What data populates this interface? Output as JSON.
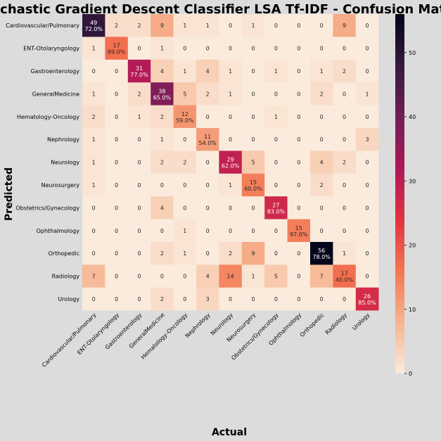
{
  "chart_data": {
    "type": "heatmap",
    "title": "Stochastic Gradient Descent Classifier LSA Tf-IDF - Confusion Matrix",
    "xlabel": "Actual",
    "ylabel": "Predicted",
    "x_categories": [
      "Cardiovascular/Pulmonary",
      "ENT-Otolaryngology",
      "Gastroenterology",
      "GeneralMedicine",
      "Hematology-Oncology",
      "Nephrology",
      "Neurology",
      "Neurosurgery",
      "Obstetrics/Gynecology",
      "Ophthalmology",
      "Orthopedic",
      "Radiology",
      "Urology"
    ],
    "y_categories": [
      "Cardiovascular/Pulmonary",
      "ENT-Otolaryngology",
      "Gastroenterology",
      "GeneralMedicine",
      "Hematology-Oncology",
      "Nephrology",
      "Neurology",
      "Neurosurgery",
      "Obstetrics/Gynecology",
      "Ophthalmology",
      "Orthopedic",
      "Radiology",
      "Urology"
    ],
    "values": [
      [
        49,
        2,
        2,
        9,
        1,
        1,
        0,
        1,
        0,
        0,
        0,
        9,
        0
      ],
      [
        1,
        17,
        0,
        1,
        0,
        0,
        0,
        0,
        0,
        0,
        0,
        0,
        0
      ],
      [
        0,
        0,
        31,
        4,
        1,
        4,
        1,
        0,
        1,
        0,
        1,
        2,
        0
      ],
      [
        1,
        0,
        2,
        38,
        5,
        2,
        1,
        0,
        0,
        0,
        2,
        0,
        1
      ],
      [
        2,
        0,
        1,
        2,
        12,
        0,
        0,
        0,
        1,
        0,
        0,
        0,
        0
      ],
      [
        1,
        0,
        0,
        1,
        0,
        11,
        0,
        0,
        0,
        0,
        0,
        0,
        3
      ],
      [
        1,
        0,
        0,
        2,
        2,
        0,
        29,
        5,
        0,
        0,
        4,
        2,
        0
      ],
      [
        1,
        0,
        0,
        0,
        0,
        0,
        1,
        15,
        0,
        0,
        2,
        0,
        0
      ],
      [
        0,
        0,
        0,
        4,
        0,
        0,
        0,
        0,
        27,
        0,
        0,
        0,
        0
      ],
      [
        0,
        0,
        0,
        0,
        1,
        0,
        0,
        0,
        0,
        15,
        0,
        0,
        0
      ],
      [
        0,
        0,
        0,
        2,
        1,
        0,
        2,
        9,
        0,
        0,
        56,
        1,
        0
      ],
      [
        7,
        0,
        0,
        0,
        0,
        4,
        14,
        1,
        5,
        0,
        7,
        17,
        0
      ],
      [
        0,
        0,
        0,
        2,
        0,
        3,
        0,
        0,
        0,
        0,
        0,
        0,
        26
      ]
    ],
    "diagonal_percent": [
      "72.0%",
      "89.0%",
      "77.0%",
      "65.0%",
      "59.0%",
      "54.0%",
      "62.0%",
      "60.0%",
      "83.0%",
      "97.0%",
      "78.0%",
      "40.0%",
      "85.0%"
    ],
    "colorbar": {
      "min": 0,
      "max": 56,
      "ticks": [
        0,
        10,
        20,
        30,
        40,
        50
      ]
    },
    "colormap": [
      "#faebdd",
      "#f6b48f",
      "#f37651",
      "#e13342",
      "#ad1759",
      "#701f57",
      "#36193e",
      "#03051a"
    ],
    "grid": false,
    "legend": "colorbar-right"
  }
}
